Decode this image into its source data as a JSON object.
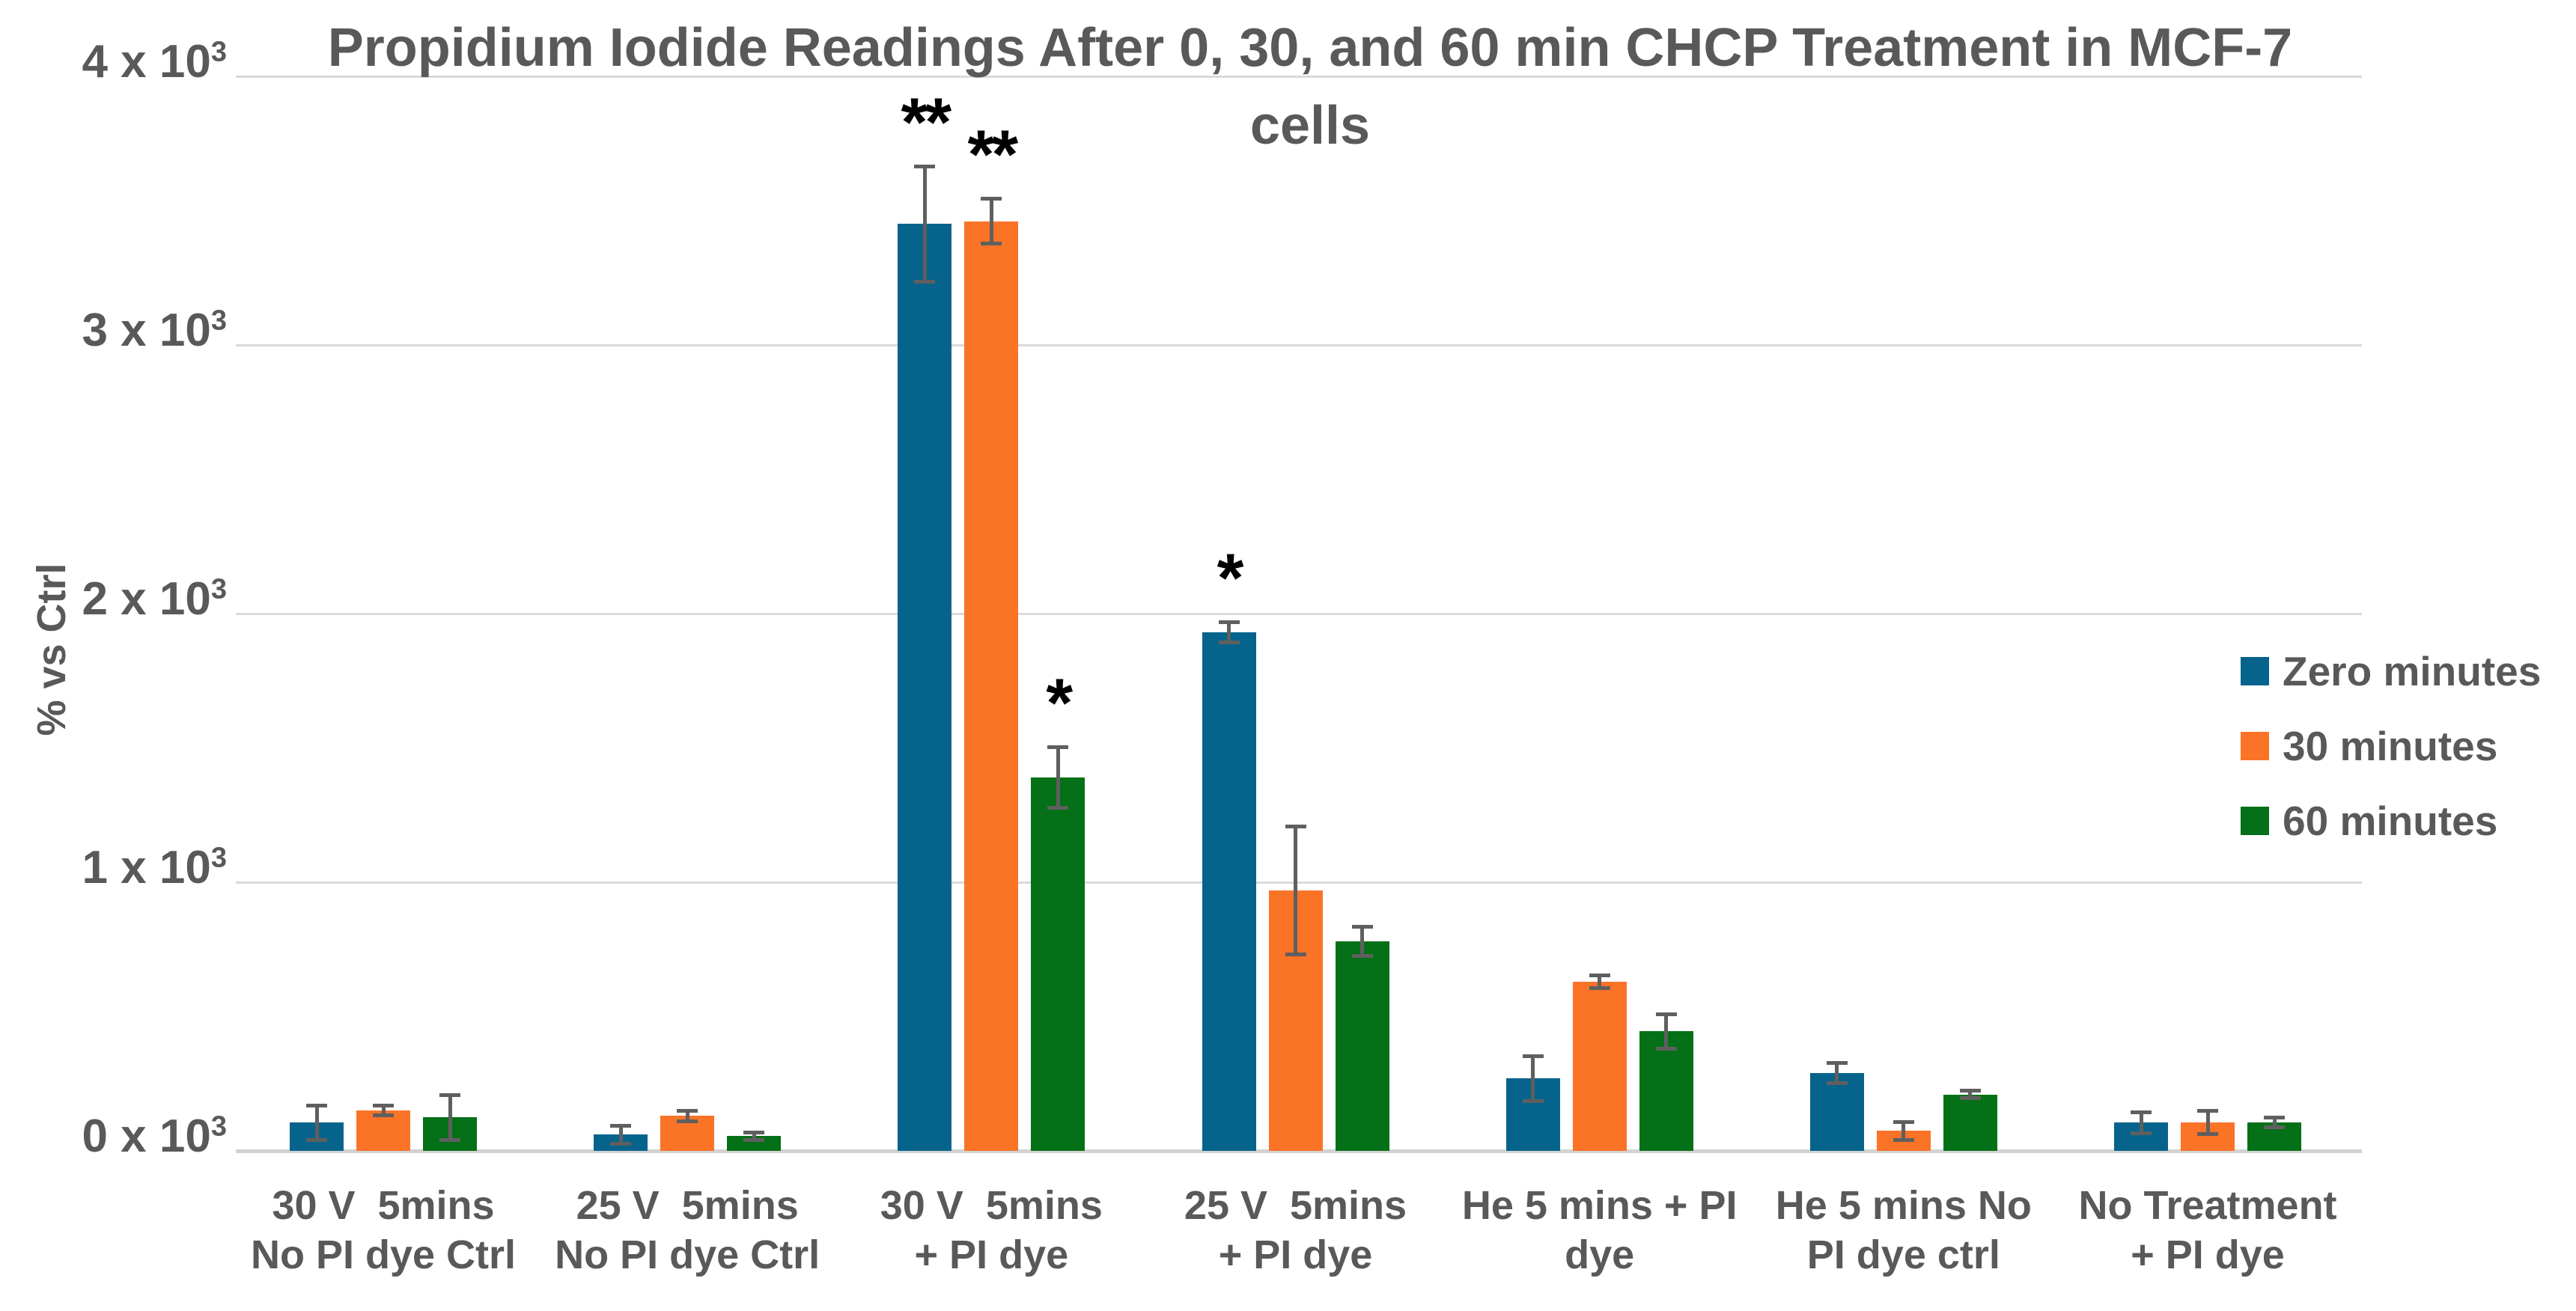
{
  "chart_data": {
    "type": "bar",
    "title": "Propidium Iodide Readings After 0, 30, and 60 min CHCP Treatment in MCF-7 cells",
    "title_lines": [
      "Propidium Iodide Readings After 0, 30, and 60 min CHCP Treatment in MCF-7",
      "cells"
    ],
    "ylabel": "% vs Ctrl",
    "xlabel": "",
    "ylim": [
      0,
      4000
    ],
    "grid": true,
    "legend_position": "right",
    "y_ticks": [
      {
        "value": 0,
        "label": "0 x 10³",
        "base": "0 x 10",
        "sup": "3"
      },
      {
        "value": 1000,
        "label": "1 x 10³",
        "base": "1 x 10",
        "sup": "3"
      },
      {
        "value": 2000,
        "label": "2 x 10³",
        "base": "2 x 10",
        "sup": "3"
      },
      {
        "value": 3000,
        "label": "3 x 10³",
        "base": "3 x 10",
        "sup": "3"
      },
      {
        "value": 4000,
        "label": "4 x 10³",
        "base": "4 x 10",
        "sup": "3"
      }
    ],
    "categories": [
      {
        "label": "30 V  5mins No PI dye Ctrl",
        "lines": [
          "30 V  5mins",
          "No PI dye Ctrl"
        ]
      },
      {
        "label": "25 V  5mins No PI dye Ctrl",
        "lines": [
          "25 V  5mins",
          "No PI dye Ctrl"
        ]
      },
      {
        "label": "30 V  5mins + PI dye",
        "lines": [
          "30 V  5mins",
          "+ PI dye"
        ]
      },
      {
        "label": "25 V  5mins + PI dye",
        "lines": [
          "25 V  5mins",
          "+ PI dye"
        ]
      },
      {
        "label": "He 5 mins + PI dye",
        "lines": [
          "He 5 mins + PI",
          "dye"
        ]
      },
      {
        "label": "He 5 mins No PI dye ctrl",
        "lines": [
          "He 5 mins No",
          "PI dye ctrl"
        ]
      },
      {
        "label": "No Treatment + PI dye",
        "lines": [
          "No Treatment",
          "+ PI dye"
        ]
      }
    ],
    "series": [
      {
        "name": "Zero minutes",
        "color": "#06648C",
        "values": [
          105,
          60,
          3450,
          1930,
          270,
          290,
          105
        ],
        "errors": [
          65,
          35,
          215,
          40,
          85,
          40,
          40
        ],
        "sig": [
          "",
          "",
          "**",
          "*",
          "",
          "",
          ""
        ]
      },
      {
        "name": "30 minutes",
        "color": "#FB7327",
        "values": [
          150,
          130,
          3460,
          970,
          630,
          75,
          105
        ],
        "errors": [
          20,
          20,
          85,
          240,
          25,
          35,
          45
        ],
        "sig": [
          "",
          "",
          "**",
          "",
          "",
          "",
          ""
        ]
      },
      {
        "name": "60 minutes",
        "color": "#047017",
        "values": [
          125,
          55,
          1390,
          780,
          445,
          210,
          105
        ],
        "errors": [
          85,
          15,
          115,
          55,
          65,
          15,
          20
        ],
        "sig": [
          "",
          "",
          "*",
          "",
          "",
          "",
          ""
        ]
      }
    ],
    "colors": {
      "gridline": "#DADADA",
      "axis_line": "#D2D2D2",
      "text": "#595959",
      "error_bar": "#5F5F5F",
      "significance": "#000000",
      "background": "#FFFFFF"
    }
  }
}
